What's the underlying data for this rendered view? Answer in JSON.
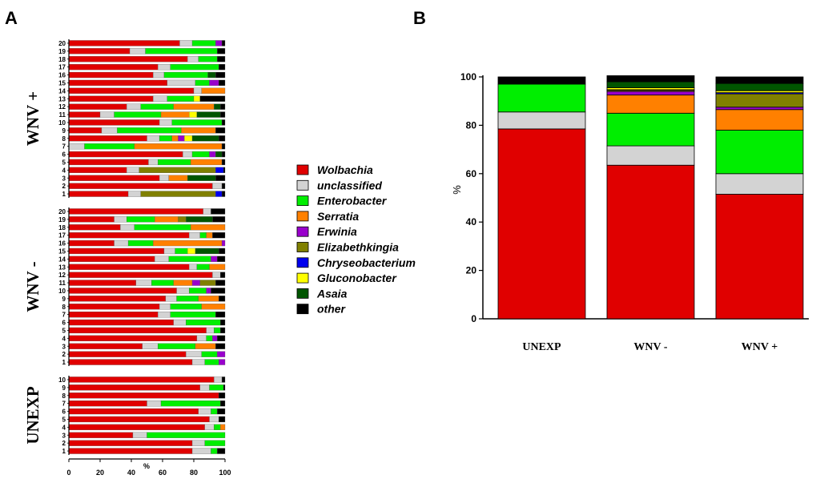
{
  "panels": {
    "a": "A",
    "b": "B"
  },
  "colors": {
    "Wolbachia": "#e00000",
    "unclassified": "#d3d3d3",
    "Enterobacter": "#00ee00",
    "Serratia": "#ff8000",
    "Erwinia": "#9900cc",
    "Elizabethkingia": "#808000",
    "Chryseobacterium": "#0000ee",
    "Gluconobacter": "#ffff00",
    "Asaia": "#005500",
    "other": "#000000"
  },
  "legend": [
    "Wolbachia",
    "unclassified",
    "Enterobacter",
    "Serratia",
    "Erwinia",
    "Elizabethkingia",
    "Chryseobacterium",
    "Gluconobacter",
    "Asaia",
    "other"
  ],
  "chart_data": [
    {
      "type": "bar",
      "orientation": "horizontal-stacked",
      "xlabel": "%",
      "xlim": [
        0,
        100
      ],
      "xticks": [
        0,
        20,
        40,
        60,
        80,
        100
      ],
      "taxa": [
        "Wolbachia",
        "unclassified",
        "Enterobacter",
        "Serratia",
        "Erwinia",
        "Elizabethkingia",
        "Chryseobacterium",
        "Gluconobacter",
        "Asaia",
        "other"
      ],
      "groups": [
        {
          "name": "WNV +",
          "samples": [
            {
              "label": "20",
              "values": [
                71,
                8,
                15,
                0,
                4,
                0,
                0,
                0,
                0,
                2
              ]
            },
            {
              "label": "19",
              "values": [
                39,
                10,
                46,
                0,
                0,
                0,
                0,
                0,
                0,
                5
              ]
            },
            {
              "label": "18",
              "values": [
                76,
                7,
                12,
                0,
                0,
                0,
                0,
                0,
                0,
                5
              ]
            },
            {
              "label": "17",
              "values": [
                57,
                8,
                31,
                0,
                0,
                0,
                0,
                0,
                0,
                4
              ]
            },
            {
              "label": "16",
              "values": [
                54,
                7,
                28,
                0,
                0,
                0,
                0,
                0,
                5,
                6
              ]
            },
            {
              "label": "15",
              "values": [
                63,
                18,
                9,
                0,
                6,
                0,
                0,
                0,
                0,
                4
              ]
            },
            {
              "label": "14",
              "values": [
                80,
                5,
                0,
                15,
                0,
                0,
                0,
                0,
                0,
                0
              ]
            },
            {
              "label": "13",
              "values": [
                54,
                9,
                17,
                0,
                0,
                0,
                0,
                4,
                0,
                16
              ]
            },
            {
              "label": "12",
              "values": [
                37,
                9,
                21,
                26,
                0,
                0,
                0,
                0,
                4,
                3
              ]
            },
            {
              "label": "11",
              "values": [
                20,
                9,
                30,
                18,
                0,
                0,
                0,
                5,
                15,
                3
              ]
            },
            {
              "label": "10",
              "values": [
                58,
                8,
                32,
                0,
                0,
                0,
                0,
                0,
                0,
                2
              ]
            },
            {
              "label": "9",
              "values": [
                21,
                10,
                41,
                22,
                0,
                0,
                0,
                0,
                0,
                6
              ]
            },
            {
              "label": "8",
              "values": [
                50,
                8,
                8,
                4,
                4,
                0,
                0,
                5,
                17,
                4
              ]
            },
            {
              "label": "7",
              "values": [
                0,
                10,
                32,
                56,
                0,
                0,
                0,
                0,
                0,
                2
              ]
            },
            {
              "label": "6",
              "values": [
                73,
                6,
                11,
                0,
                4,
                0,
                0,
                0,
                4,
                2
              ]
            },
            {
              "label": "5",
              "values": [
                51,
                6,
                21,
                20,
                0,
                0,
                0,
                0,
                0,
                2
              ]
            },
            {
              "label": "4",
              "values": [
                37,
                8,
                0,
                0,
                0,
                49,
                5,
                0,
                0,
                1
              ]
            },
            {
              "label": "3",
              "values": [
                58,
                6,
                0,
                12,
                0,
                0,
                0,
                0,
                18,
                6
              ]
            },
            {
              "label": "2",
              "values": [
                92,
                6,
                0,
                0,
                0,
                0,
                0,
                0,
                0,
                2
              ]
            },
            {
              "label": "1",
              "values": [
                38,
                8,
                0,
                0,
                0,
                48,
                4,
                0,
                0,
                2
              ]
            }
          ]
        },
        {
          "name": "WNV -",
          "samples": [
            {
              "label": "20",
              "values": [
                86,
                5,
                0,
                0,
                0,
                0,
                0,
                0,
                0,
                9
              ]
            },
            {
              "label": "19",
              "values": [
                29,
                8,
                18,
                15,
                0,
                5,
                0,
                0,
                17,
                8
              ]
            },
            {
              "label": "18",
              "values": [
                33,
                9,
                36,
                22,
                0,
                0,
                0,
                0,
                0,
                0
              ]
            },
            {
              "label": "17",
              "values": [
                77,
                7,
                4,
                4,
                0,
                0,
                0,
                0,
                0,
                8
              ]
            },
            {
              "label": "16",
              "values": [
                29,
                9,
                16,
                44,
                2,
                0,
                0,
                0,
                0,
                0
              ]
            },
            {
              "label": "15",
              "values": [
                61,
                7,
                8,
                0,
                0,
                0,
                0,
                5,
                15,
                4
              ]
            },
            {
              "label": "14",
              "values": [
                55,
                9,
                27,
                0,
                4,
                0,
                0,
                0,
                0,
                5
              ]
            },
            {
              "label": "13",
              "values": [
                77,
                5,
                8,
                10,
                0,
                0,
                0,
                0,
                0,
                0
              ]
            },
            {
              "label": "12",
              "values": [
                92,
                5,
                0,
                0,
                0,
                0,
                0,
                0,
                0,
                3
              ]
            },
            {
              "label": "11",
              "values": [
                43,
                10,
                14,
                12,
                5,
                10,
                0,
                0,
                0,
                6
              ]
            },
            {
              "label": "10",
              "values": [
                69,
                8,
                11,
                0,
                3,
                0,
                0,
                0,
                0,
                9
              ]
            },
            {
              "label": "9",
              "values": [
                62,
                7,
                14,
                13,
                0,
                0,
                0,
                0,
                0,
                4
              ]
            },
            {
              "label": "8",
              "values": [
                58,
                7,
                20,
                15,
                0,
                0,
                0,
                0,
                0,
                0
              ]
            },
            {
              "label": "7",
              "values": [
                57,
                8,
                29,
                0,
                0,
                0,
                0,
                0,
                0,
                6
              ]
            },
            {
              "label": "6",
              "values": [
                67,
                8,
                22,
                0,
                0,
                0,
                0,
                0,
                0,
                3
              ]
            },
            {
              "label": "5",
              "values": [
                88,
                5,
                4,
                0,
                0,
                0,
                0,
                0,
                0,
                3
              ]
            },
            {
              "label": "4",
              "values": [
                82,
                6,
                4,
                0,
                3,
                0,
                0,
                0,
                0,
                5
              ]
            },
            {
              "label": "3",
              "values": [
                47,
                10,
                24,
                13,
                0,
                0,
                0,
                0,
                0,
                6
              ]
            },
            {
              "label": "2",
              "values": [
                75,
                10,
                10,
                0,
                5,
                0,
                0,
                0,
                0,
                0
              ]
            },
            {
              "label": "1",
              "values": [
                79,
                8,
                9,
                0,
                4,
                0,
                0,
                0,
                0,
                0
              ]
            }
          ]
        },
        {
          "name": "UNEXP",
          "samples": [
            {
              "label": "10",
              "values": [
                93,
                5,
                0,
                0,
                0,
                0,
                0,
                0,
                0,
                2
              ]
            },
            {
              "label": "9",
              "values": [
                84,
                6,
                9,
                0,
                0,
                0,
                0,
                0,
                0,
                1
              ]
            },
            {
              "label": "8",
              "values": [
                96,
                0,
                0,
                0,
                0,
                0,
                0,
                0,
                0,
                4
              ]
            },
            {
              "label": "7",
              "values": [
                50,
                9,
                38,
                0,
                0,
                0,
                0,
                0,
                0,
                3
              ]
            },
            {
              "label": "6",
              "values": [
                83,
                8,
                4,
                0,
                0,
                0,
                0,
                0,
                0,
                5
              ]
            },
            {
              "label": "5",
              "values": [
                90,
                6,
                0,
                0,
                0,
                0,
                0,
                0,
                0,
                4
              ]
            },
            {
              "label": "4",
              "values": [
                87,
                6,
                4,
                3,
                0,
                0,
                0,
                0,
                0,
                0
              ]
            },
            {
              "label": "3",
              "values": [
                41,
                9,
                50,
                0,
                0,
                0,
                0,
                0,
                0,
                0
              ]
            },
            {
              "label": "2",
              "values": [
                79,
                8,
                13,
                0,
                0,
                0,
                0,
                0,
                0,
                0
              ]
            },
            {
              "label": "1",
              "values": [
                79,
                12,
                4,
                0,
                0,
                0,
                0,
                0,
                0,
                5
              ]
            }
          ]
        }
      ]
    },
    {
      "type": "bar",
      "orientation": "vertical-stacked",
      "ylabel": "%",
      "ylim": [
        0,
        100
      ],
      "yticks": [
        0,
        20,
        40,
        60,
        80,
        100
      ],
      "categories": [
        "UNEXP",
        "WNV -",
        "WNV +"
      ],
      "taxa": [
        "Wolbachia",
        "unclassified",
        "Enterobacter",
        "Serratia",
        "Erwinia",
        "Elizabethkingia",
        "Chryseobacterium",
        "Gluconobacter",
        "Asaia",
        "other"
      ],
      "values": [
        [
          78.5,
          7.0,
          11.5,
          0,
          0,
          0,
          0,
          0,
          0,
          3.0
        ],
        [
          63.5,
          8.0,
          13.5,
          7.5,
          1.5,
          0.5,
          0.2,
          0.8,
          2.5,
          2.5
        ],
        [
          51.5,
          8.5,
          18.0,
          8.5,
          1.0,
          5.5,
          0.5,
          0.8,
          3.0,
          2.7
        ]
      ]
    }
  ]
}
